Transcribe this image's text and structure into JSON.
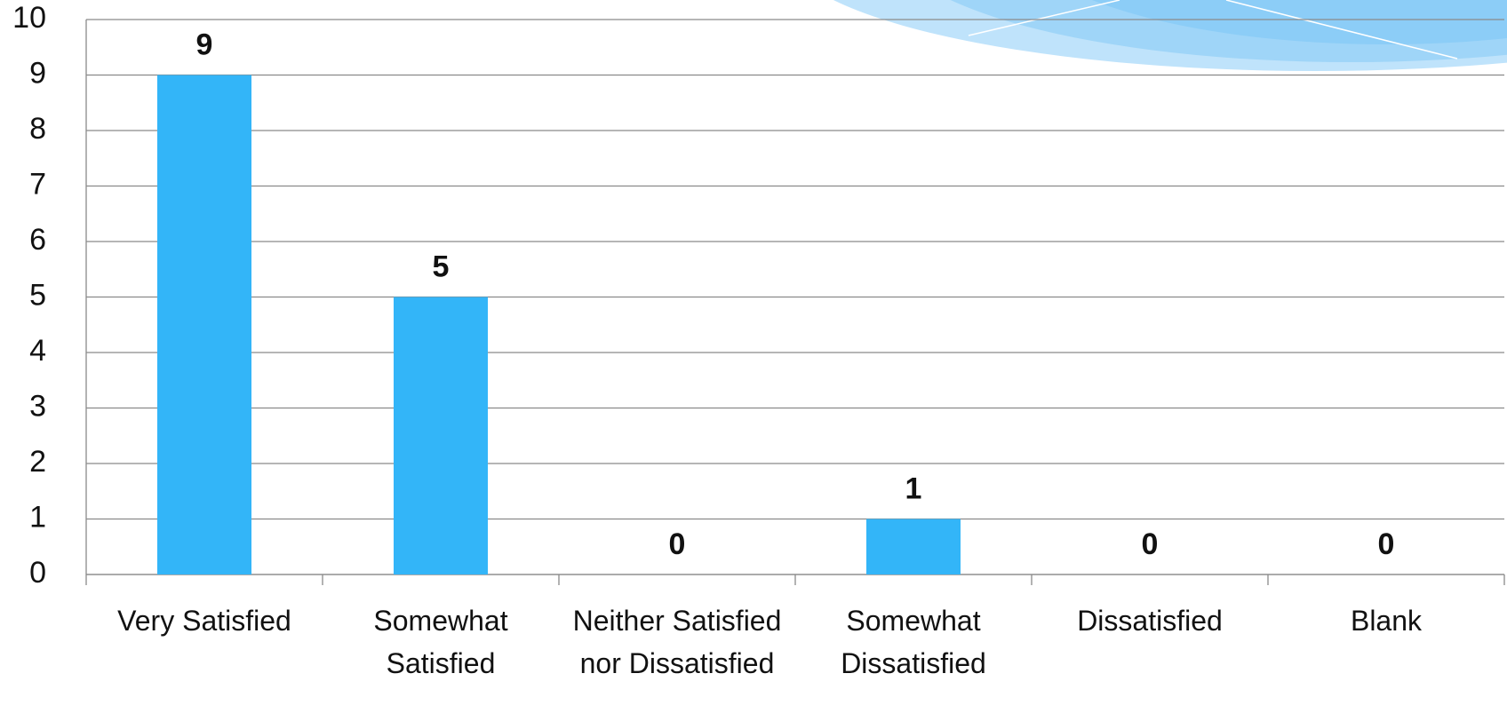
{
  "chart_data": {
    "type": "bar",
    "categories": [
      "Very Satisfied",
      "Somewhat Satisfied",
      "Neither Satisfied nor Dissatisfied",
      "Somewhat Dissatisfied",
      "Dissatisfied",
      "Blank"
    ],
    "values": [
      9,
      5,
      0,
      1,
      0,
      0
    ],
    "color": "#33b5f8",
    "ylim": [
      0,
      10
    ],
    "yticks": [
      0,
      1,
      2,
      3,
      4,
      5,
      6,
      7,
      8,
      9,
      10
    ],
    "grid": true
  }
}
